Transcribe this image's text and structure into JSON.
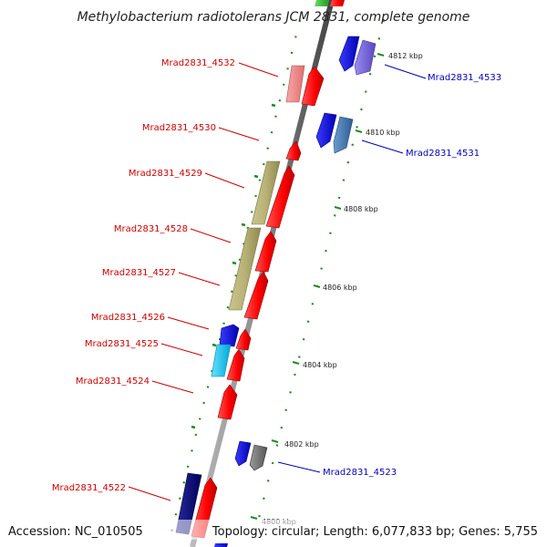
{
  "title": "Methylobacterium radiotolerans JCM 2831, complete genome",
  "accession": "Accession: NC_010505",
  "summary": "Topology: circular; Length: 6,077,833 bp; Genes: 5,755",
  "colors": {
    "backbone": "#888888",
    "forward_label": "#cc0000",
    "reverse_label": "#0000bb",
    "dots": "#228B22",
    "forward_arrow": "#ff0000",
    "reverse_arrow": "#0000ee"
  },
  "scale_ticks": [
    {
      "label": "4812 kbp"
    },
    {
      "label": "4810 kbp"
    },
    {
      "label": "4808 kbp"
    },
    {
      "label": "4806 kbp"
    },
    {
      "label": "4804 kbp"
    },
    {
      "label": "4802 kbp"
    },
    {
      "label": "4800 kbp"
    }
  ],
  "labels_left": [
    {
      "text": "Mrad2831_4532"
    },
    {
      "text": "Mrad2831_4530"
    },
    {
      "text": "Mrad2831_4529"
    },
    {
      "text": "Mrad2831_4528"
    },
    {
      "text": "Mrad2831_4527"
    },
    {
      "text": "Mrad2831_4526"
    },
    {
      "text": "Mrad2831_4525"
    },
    {
      "text": "Mrad2831_4524"
    },
    {
      "text": "Mrad2831_4522"
    }
  ],
  "labels_right": [
    {
      "text": "Mrad2831_4533"
    },
    {
      "text": "Mrad2831_4531"
    },
    {
      "text": "Mrad2831_4523"
    }
  ]
}
